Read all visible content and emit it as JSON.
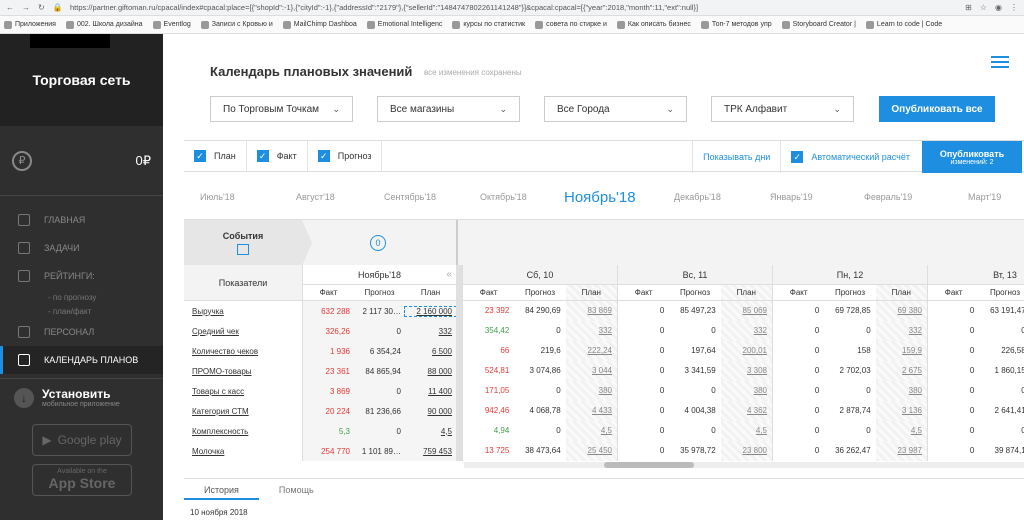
{
  "browser": {
    "url": "https://partner.giftoman.ru/cpacal/index#cpacal:place=[{\"shopId\":-1},{\"cityId\":-1},{\"addressId\":\"2179\"},{\"sellerId\":\"1484747802261141248\"}]&cpacal:cpacal=[{\"year\":2018,\"month\":11,\"ext\":null}]"
  },
  "bookmarks": [
    "Приложения",
    "002. Школа дизайна",
    "Eventlog",
    "Записи с Кровью и",
    "MailChimp Dashboa",
    "Emotional Intelligenc",
    "курсы по статистик",
    "совета по стирке и",
    "Как описать бизнес",
    "Топ-7 методов упр",
    "Storyboard Creator |",
    "Learn to code | Code"
  ],
  "sidebar": {
    "title": "Торговая сеть",
    "balance": "0₽",
    "coin_symbol": "₽",
    "menu": [
      {
        "label": "Главная",
        "icon": "chart-icon",
        "active": false
      },
      {
        "label": "Задачи",
        "icon": "tasks-icon",
        "active": false
      },
      {
        "label": "Рейтинги:",
        "icon": "rating-icon",
        "active": false
      }
    ],
    "submenu": [
      "- по прогнозу",
      "- план/факт"
    ],
    "menu2": [
      {
        "label": "Персонал",
        "icon": "staff-icon",
        "active": false
      },
      {
        "label": "Календарь планов",
        "icon": "calendar-icon",
        "active": true
      }
    ],
    "install_title": "Установить",
    "install_sub": "мобильное приложение",
    "google_play": "Google play",
    "app_store_small": "Available on the",
    "app_store": "App Store"
  },
  "header": {
    "title": "Календарь плановых значений",
    "saved": "все изменения сохранены"
  },
  "filters": [
    "По Торговым Точкам",
    "Все магазины",
    "Все Города",
    "ТРК Алфавит"
  ],
  "publish_all": "Опубликовать все",
  "toolbar": {
    "checks": [
      "План",
      "Факт",
      "Прогноз"
    ],
    "show_days": "Показывать дни",
    "auto_calc": "Автоматический расчёт",
    "publish": "Опубликовать",
    "changes": "изменений: 2"
  },
  "months": [
    "Июль'18",
    "Август'18",
    "Сентябрь'18",
    "Октябрь'18",
    "Ноябрь'18",
    "Декабрь'18",
    "Январь'19",
    "Февраль'19",
    "Март'19"
  ],
  "current_month": "Ноябрь'18",
  "events": {
    "label": "События",
    "count": "0"
  },
  "grid": {
    "label_header": "Показатели",
    "rows": [
      "Выручка",
      "Средний чек",
      "Количество чеков",
      "ПРОМО-товары",
      "Товары с касс",
      "Категория СТМ",
      "Комплексность",
      "Молочка"
    ],
    "summary": {
      "title": "Ноябрь'18",
      "cols": [
        "Факт",
        "Прогноз",
        "План"
      ],
      "values": [
        {
          "f": "632 288",
          "p": "2 117 30…",
          "pl": "2 160 000",
          "fc": "red"
        },
        {
          "f": "326,26",
          "p": "0",
          "pl": "332",
          "fc": "red"
        },
        {
          "f": "1 936",
          "p": "6 354,24",
          "pl": "6 500",
          "fc": "red"
        },
        {
          "f": "23 361",
          "p": "84 865,94",
          "pl": "88 000",
          "fc": "red"
        },
        {
          "f": "3 869",
          "p": "0",
          "pl": "11 400",
          "fc": "red"
        },
        {
          "f": "20 224",
          "p": "81 236,66",
          "pl": "90 000",
          "fc": "red"
        },
        {
          "f": "5,3",
          "p": "0",
          "pl": "4,5",
          "fc": "green"
        },
        {
          "f": "254 770",
          "p": "1 101 89…",
          "pl": "759 453",
          "fc": "red"
        }
      ]
    },
    "day_cols": [
      "Факт",
      "Прогноз",
      "План"
    ],
    "days": [
      {
        "title": "Сб, 10",
        "rows": [
          [
            "23 392",
            "84 290,69",
            "83 869",
            "red"
          ],
          [
            "354,42",
            "0",
            "332",
            "green"
          ],
          [
            "66",
            "219,6",
            "222,24",
            "red"
          ],
          [
            "524,81",
            "3 074,86",
            "3 044",
            "red"
          ],
          [
            "171,05",
            "0",
            "380",
            "red"
          ],
          [
            "942,46",
            "4 068,78",
            "4 433",
            "red"
          ],
          [
            "4,94",
            "0",
            "4,5",
            "green"
          ],
          [
            "13 725",
            "38 473,64",
            "25 450",
            "red"
          ]
        ]
      },
      {
        "title": "Вс, 11",
        "rows": [
          [
            "0",
            "85 497,23",
            "85 069",
            ""
          ],
          [
            "0",
            "0",
            "332",
            ""
          ],
          [
            "0",
            "197,64",
            "200,01",
            ""
          ],
          [
            "0",
            "3 341,59",
            "3 308",
            ""
          ],
          [
            "0",
            "0",
            "380",
            ""
          ],
          [
            "0",
            "4 004,38",
            "4 362",
            ""
          ],
          [
            "0",
            "0",
            "4,5",
            ""
          ],
          [
            "0",
            "35 978,72",
            "23 800",
            ""
          ]
        ]
      },
      {
        "title": "Пн, 12",
        "rows": [
          [
            "0",
            "69 728,85",
            "69 380",
            ""
          ],
          [
            "0",
            "0",
            "332",
            ""
          ],
          [
            "0",
            "158",
            "159,9",
            ""
          ],
          [
            "0",
            "2 702,03",
            "2 675",
            ""
          ],
          [
            "0",
            "0",
            "380",
            ""
          ],
          [
            "0",
            "2 878,74",
            "3 136",
            ""
          ],
          [
            "0",
            "0",
            "4,5",
            ""
          ],
          [
            "0",
            "36 262,47",
            "23 987",
            ""
          ]
        ]
      },
      {
        "title": "Вт, 13",
        "rows": [
          [
            "0",
            "63 191,47",
            "",
            ""
          ],
          [
            "0",
            "0",
            "",
            ""
          ],
          [
            "0",
            "226,58",
            "",
            ""
          ],
          [
            "0",
            "1 860,15",
            "",
            ""
          ],
          [
            "0",
            "0",
            "",
            ""
          ],
          [
            "0",
            "2 641,41",
            "",
            ""
          ],
          [
            "0",
            "0",
            "",
            ""
          ],
          [
            "0",
            "39 874,1",
            "",
            ""
          ]
        ]
      }
    ]
  },
  "bottom_tabs": [
    "История",
    "Помощь"
  ],
  "history_date": "10 ноября 2018",
  "colors": {
    "accent": "#1e8fe0",
    "red": "#e53935",
    "green": "#43a047",
    "sidebar": "#2f2f2f"
  }
}
